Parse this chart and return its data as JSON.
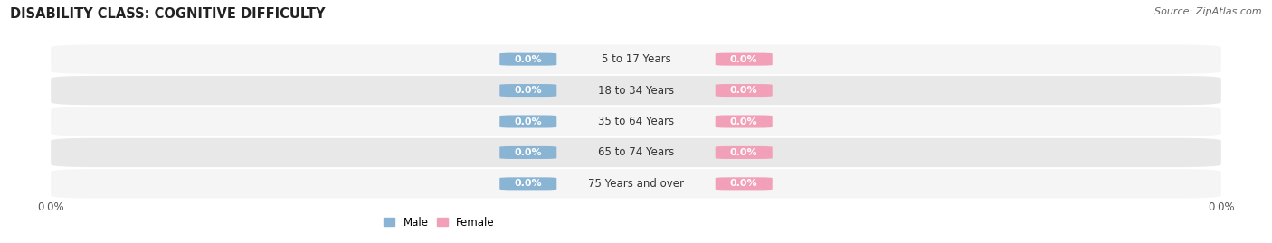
{
  "title": "DISABILITY CLASS: COGNITIVE DIFFICULTY",
  "source": "Source: ZipAtlas.com",
  "categories": [
    "5 to 17 Years",
    "18 to 34 Years",
    "35 to 64 Years",
    "65 to 74 Years",
    "75 Years and over"
  ],
  "male_values": [
    0.0,
    0.0,
    0.0,
    0.0,
    0.0
  ],
  "female_values": [
    0.0,
    0.0,
    0.0,
    0.0,
    0.0
  ],
  "male_color": "#8ab4d4",
  "female_color": "#f2a0b8",
  "male_label_color": "#ffffff",
  "female_label_color": "#ffffff",
  "row_bg_color_light": "#f5f5f5",
  "row_bg_color_dark": "#e8e8e8",
  "title_fontsize": 10.5,
  "source_fontsize": 8,
  "label_fontsize": 8,
  "cat_fontsize": 8.5,
  "tick_fontsize": 8.5,
  "figsize": [
    14.06,
    2.69
  ],
  "dpi": 100,
  "background_color": "#ffffff",
  "legend_male_color": "#8ab4d4",
  "legend_female_color": "#f2a0b8"
}
